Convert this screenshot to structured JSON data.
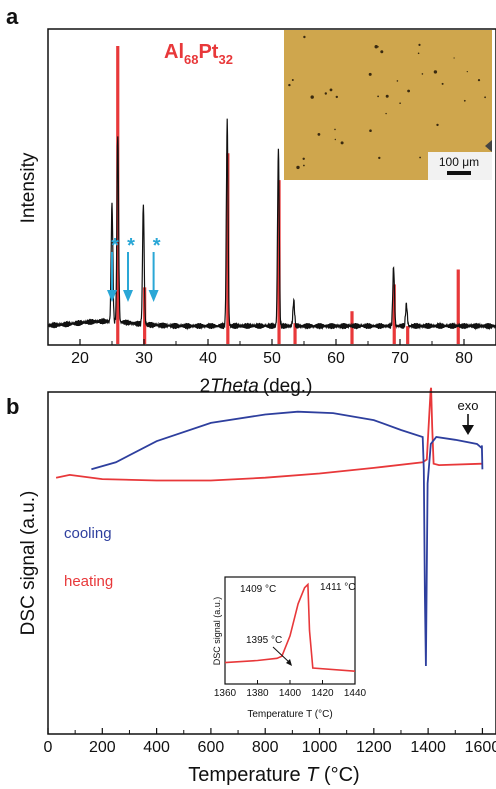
{
  "colors": {
    "black": "#111111",
    "red": "#e8383a",
    "blue": "#2e3f9e",
    "cyan": "#2aa7d6",
    "micrograph": "#cfa64d"
  },
  "panel_a": {
    "label": "a",
    "compound": {
      "main1": "Al",
      "sub1": "68",
      "main2": "Pt",
      "sub2": "32"
    },
    "ylabel": "Intensity",
    "xlabel_prefix": "2",
    "xlabel_italic": "Theta",
    "xlabel_suffix": "(deg.)",
    "scalebar": "100 μm",
    "star": "*"
  },
  "panel_b": {
    "label": "b",
    "ylabel": "DSC signal (a.u.)",
    "xlabel_prefix": "Temperature ",
    "xlabel_italic": "T",
    "xlabel_suffix": " (°C)",
    "exo": "exo",
    "cooling": "cooling",
    "heating": "heating",
    "inset": {
      "ylabel": "DSC signal (a.u.)",
      "xlabel": "Temperature T (°C)",
      "ann_1409": "1409 °C",
      "ann_1411": "1411 °C",
      "ann_1395": "1395 °C"
    }
  },
  "chart_data": [
    {
      "type": "line",
      "panel": "a",
      "xlim": [
        15,
        85
      ],
      "xticks": [
        20,
        30,
        40,
        50,
        60,
        70,
        80
      ],
      "series": [
        {
          "name": "",
          "kind": "XRD pattern",
          "peaks_x": [
            25.0,
            25.9,
            29.9,
            43.0,
            51.0,
            53.4,
            69.0,
            71.0
          ],
          "peaks_relative_intensity": [
            0.38,
            0.6,
            0.38,
            0.66,
            0.57,
            0.08,
            0.19,
            0.07
          ]
        },
        {
          "name": "",
          "kind": "reference reflections",
          "x": [
            25.9,
            30.1,
            43.1,
            51.1,
            53.6,
            62.5,
            69.1,
            71.2,
            79.1
          ],
          "relative_intensity": [
            1.0,
            0.19,
            0.64,
            0.55,
            0.07,
            0.11,
            0.2,
            0.06,
            0.25
          ]
        }
      ],
      "markers_x": [
        25.0,
        27.5,
        31.5
      ]
    },
    {
      "type": "line",
      "panel": "b",
      "xlim": [
        0,
        1650
      ],
      "xticks": [
        0,
        200,
        400,
        600,
        800,
        1000,
        1200,
        1400,
        1600
      ],
      "series": [
        {
          "name": "cooling",
          "x": [
            160,
            250,
            400,
            600,
            800,
            920,
            1050,
            1200,
            1300,
            1380,
            1384,
            1388,
            1392,
            1398,
            1410,
            1430,
            1500,
            1580,
            1598,
            1600
          ],
          "y": [
            0.4,
            0.45,
            0.6,
            0.73,
            0.79,
            0.81,
            0.8,
            0.75,
            0.68,
            0.63,
            0.4,
            -0.5,
            -1.0,
            0.3,
            0.58,
            0.63,
            0.61,
            0.58,
            0.55,
            0.4
          ]
        },
        {
          "name": "heating",
          "x": [
            30,
            80,
            200,
            400,
            600,
            800,
            1000,
            1200,
            1380,
            1395,
            1409,
            1411,
            1415,
            1420,
            1440,
            1600
          ],
          "y": [
            0.34,
            0.36,
            0.33,
            0.32,
            0.32,
            0.34,
            0.37,
            0.41,
            0.45,
            0.47,
            0.96,
            0.98,
            0.7,
            0.44,
            0.43,
            0.44
          ]
        }
      ]
    },
    {
      "type": "line",
      "panel": "b-inset",
      "xlim": [
        1360,
        1440
      ],
      "xticks": [
        1360,
        1380,
        1400,
        1420,
        1440
      ],
      "series": [
        {
          "name": "",
          "x": [
            1360,
            1380,
            1392,
            1395,
            1400,
            1405,
            1409,
            1411,
            1412,
            1414,
            1440
          ],
          "y": [
            0.2,
            0.22,
            0.24,
            0.26,
            0.45,
            0.75,
            0.9,
            0.93,
            0.5,
            0.15,
            0.12
          ]
        }
      ]
    }
  ]
}
